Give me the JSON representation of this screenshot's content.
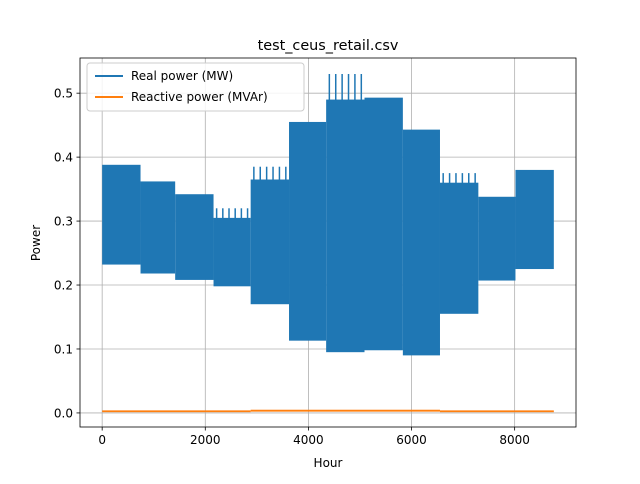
{
  "chart_data": {
    "type": "line",
    "title": "test_ceus_retail.csv",
    "xlabel": "Hour",
    "ylabel": "Power",
    "xlim": [
      -430,
      9190
    ],
    "ylim": [
      -0.022,
      0.555
    ],
    "xticks": [
      0,
      2000,
      4000,
      6000,
      8000
    ],
    "xtick_labels": [
      "0",
      "2000",
      "4000",
      "6000",
      "8000"
    ],
    "yticks": [
      0.0,
      0.1,
      0.2,
      0.3,
      0.4,
      0.5
    ],
    "ytick_labels": [
      "0.0",
      "0.1",
      "0.2",
      "0.3",
      "0.4",
      "0.5"
    ],
    "grid": true,
    "legend_position": "upper-left",
    "series": [
      {
        "name": "Real power (MW)",
        "color": "#1f77b4",
        "segments": [
          {
            "x_start": 0,
            "x_end": 744,
            "min": 0.232,
            "max": 0.388,
            "peak": 0.388
          },
          {
            "x_start": 744,
            "x_end": 1416,
            "min": 0.218,
            "max": 0.362,
            "peak": 0.362
          },
          {
            "x_start": 1416,
            "x_end": 2160,
            "min": 0.208,
            "max": 0.342,
            "peak": 0.342
          },
          {
            "x_start": 2160,
            "x_end": 2880,
            "min": 0.198,
            "max": 0.305,
            "peak": 0.32
          },
          {
            "x_start": 2880,
            "x_end": 3624,
            "min": 0.17,
            "max": 0.365,
            "peak": 0.385
          },
          {
            "x_start": 3624,
            "x_end": 4344,
            "min": 0.113,
            "max": 0.455,
            "peak": 0.455
          },
          {
            "x_start": 4344,
            "x_end": 5088,
            "min": 0.095,
            "max": 0.49,
            "peak": 0.53
          },
          {
            "x_start": 5088,
            "x_end": 5832,
            "min": 0.098,
            "max": 0.493,
            "peak": 0.493
          },
          {
            "x_start": 5832,
            "x_end": 6552,
            "min": 0.09,
            "max": 0.443,
            "peak": 0.443
          },
          {
            "x_start": 6552,
            "x_end": 7296,
            "min": 0.155,
            "max": 0.36,
            "peak": 0.375
          },
          {
            "x_start": 7296,
            "x_end": 8016,
            "min": 0.207,
            "max": 0.338,
            "peak": 0.338
          },
          {
            "x_start": 8016,
            "x_end": 8760,
            "min": 0.225,
            "max": 0.38,
            "peak": 0.382
          }
        ]
      },
      {
        "name": "Reactive power (MVAr)",
        "color": "#ff7f0e",
        "segments": [
          {
            "x_start": 0,
            "x_end": 2880,
            "min": 0.002,
            "max": 0.004,
            "peak": 0.004
          },
          {
            "x_start": 2880,
            "x_end": 6552,
            "min": 0.002,
            "max": 0.005,
            "peak": 0.005
          },
          {
            "x_start": 6552,
            "x_end": 8760,
            "min": 0.002,
            "max": 0.004,
            "peak": 0.004
          }
        ]
      }
    ]
  }
}
